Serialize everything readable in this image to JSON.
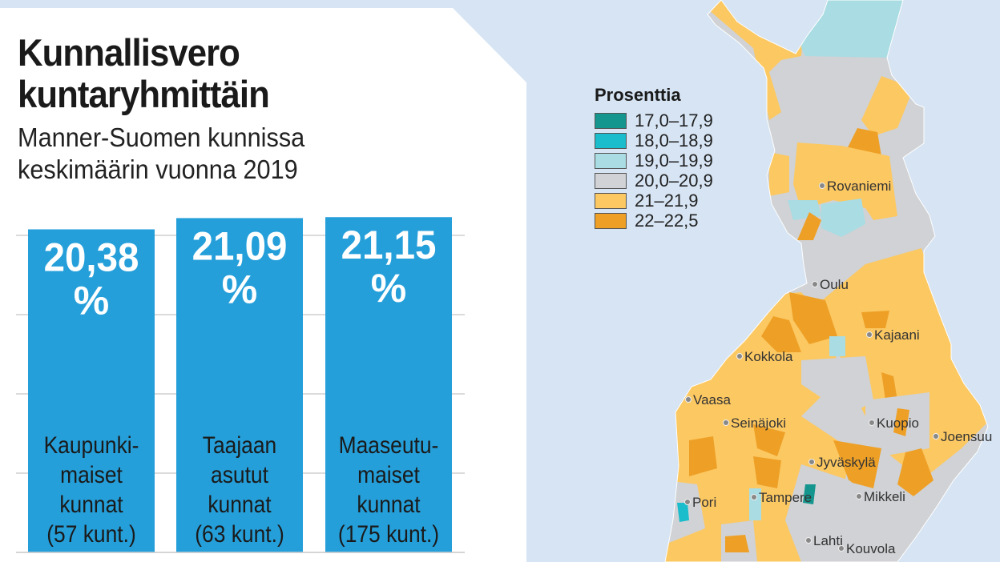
{
  "header": {
    "title_lines": [
      "Kunnallisvero",
      "kuntaryhmittäin"
    ],
    "subtitle_lines": [
      "Manner-Suomen kunnissa",
      "keskimäärin vuonna 2019"
    ]
  },
  "chart_data": {
    "type": "bar",
    "title": "Kunnallisvero kuntaryhmittäin",
    "subtitle": "Manner-Suomen kunnissa keskimäärin vuonna 2019",
    "categories": [
      "Kaupunkimaiset kunnat (57 kunt.)",
      "Taajaan asutut kunnat (63 kunt.)",
      "Maaseutumaiset kunnat (175 kunt.)"
    ],
    "values": [
      20.38,
      21.09,
      21.15
    ],
    "value_labels": [
      "20,38",
      "21,09",
      "21,15"
    ],
    "value_unit": "%",
    "category_lines": [
      [
        "Kaupunki-",
        "maiset",
        "kunnat",
        "(57 kunt.)"
      ],
      [
        "Taajaan",
        "asutut",
        "kunnat",
        "(63 kunt.)"
      ],
      [
        "Maaseutu-",
        "maiset",
        "kunnat",
        "(175 kunt.)"
      ]
    ],
    "ylim": [
      0,
      21.5
    ],
    "gridlines": [
      0,
      5,
      10,
      15,
      20
    ],
    "grid": true,
    "bar_color": "#259fda",
    "xlabel": "",
    "ylabel": ""
  },
  "map": {
    "legend_title": "Prosenttia",
    "legend": [
      {
        "label": "17,0–17,9",
        "color": "#14958d"
      },
      {
        "label": "18,0–18,9",
        "color": "#1bbccc"
      },
      {
        "label": "19,0–19,9",
        "color": "#a9dce3"
      },
      {
        "label": "20,0–20,9",
        "color": "#d0d2d5"
      },
      {
        "label": "21–21,9",
        "color": "#fcc862"
      },
      {
        "label": "22–22,5",
        "color": "#eea026"
      }
    ],
    "cities": [
      "Rovaniemi",
      "Oulu",
      "Kajaani",
      "Kokkola",
      "Vaasa",
      "Seinäjoki",
      "Kuopio",
      "Joensuu",
      "Jyväskylä",
      "Tampere",
      "Pori",
      "Mikkeli",
      "Lahti",
      "Kouvola"
    ]
  }
}
